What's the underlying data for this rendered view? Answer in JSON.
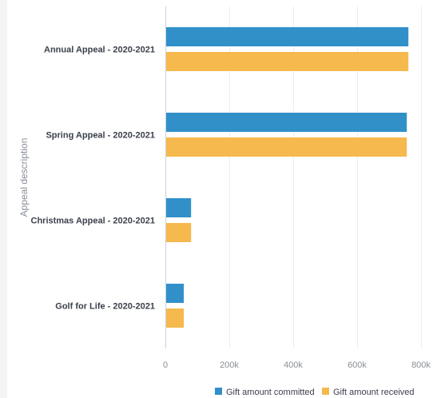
{
  "chart_data": {
    "type": "bar",
    "orientation": "horizontal",
    "title": "",
    "categories": [
      "Annual Appeal - 2020-2021",
      "Spring Appeal - 2020-2021",
      "Christmas Appeal - 2020-2021",
      "Golf for Life - 2020-2021"
    ],
    "series": [
      {
        "name": "Gift amount committed",
        "color": "#3290c9",
        "values": [
          758000,
          753000,
          78000,
          55000
        ]
      },
      {
        "name": "Gift amount received",
        "color": "#f5b94e",
        "values": [
          758000,
          753000,
          78000,
          55000
        ]
      }
    ],
    "ylabel": "Appeal description",
    "xlabel": "",
    "xlim": [
      0,
      800000
    ],
    "ticks": [
      "0",
      "200k",
      "400k",
      "600k",
      "800k"
    ],
    "tick_values": [
      0,
      200000,
      400000,
      600000,
      800000
    ],
    "grid": true,
    "legend_position": "bottom-right"
  }
}
